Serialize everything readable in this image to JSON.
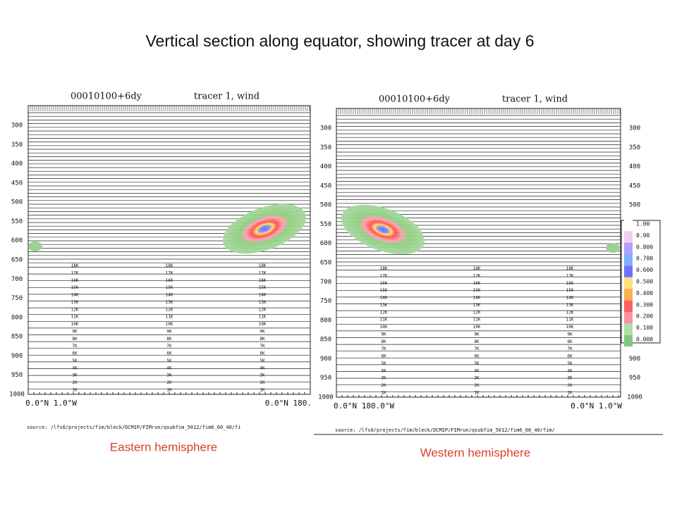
{
  "title": "Vertical section along equator, showing tracer at day 6",
  "panels": [
    {
      "date": "00010100+6dy",
      "field": "tracer 1, wind",
      "left_axis": [
        "300",
        "350",
        "400",
        "450",
        "500",
        "550",
        "600",
        "650",
        "700",
        "750",
        "800",
        "850",
        "900",
        "950",
        "1000"
      ],
      "right_axis": [],
      "level_labels": [
        "18K",
        "17K",
        "16K",
        "15K",
        "14K",
        "13K",
        "12K",
        "11K",
        "10K",
        "9K",
        "8K",
        "7K",
        "6K",
        "5K",
        "4K",
        "3K",
        "2K",
        "1K"
      ],
      "x_left": "0.0°N  1.0°W",
      "x_right": "0.0°N 180.",
      "source": "source: /lfs0/projects/fim/bleck/DCMIP/FIMrun/qsubfim_5012/fim6_60_40/fi",
      "caption": "Eastern hemisphere"
    },
    {
      "date": "00010100+6dy",
      "field": "tracer 1, wind",
      "left_axis": [
        "300",
        "350",
        "400",
        "450",
        "500",
        "550",
        "600",
        "650",
        "700",
        "750",
        "800",
        "850",
        "900",
        "950",
        "1000"
      ],
      "right_axis": [
        "300",
        "350",
        "400",
        "450",
        "500",
        "900",
        "950",
        "1000"
      ],
      "level_labels": [
        "18K",
        "17K",
        "16K",
        "15K",
        "14K",
        "13K",
        "12K",
        "11K",
        "10K",
        "9K",
        "8K",
        "7K",
        "6K",
        "5K",
        "4K",
        "3K",
        "2K",
        "1K"
      ],
      "x_left": "0.0°N 180.0°W",
      "x_right": "0.0°N  1.0°W",
      "source": "source: /lfs0/projects/fim/bleck/DCMIP/FIMrun/qsubfim_5012/fim6_60_40/fim/",
      "caption": "Western hemisphere"
    }
  ],
  "colorbar": [
    "1.00",
    "0.90",
    "0.800",
    "0.700",
    "0.600",
    "0.500",
    "0.400",
    "0.300",
    "0.200",
    "0.100",
    "0.000"
  ]
}
